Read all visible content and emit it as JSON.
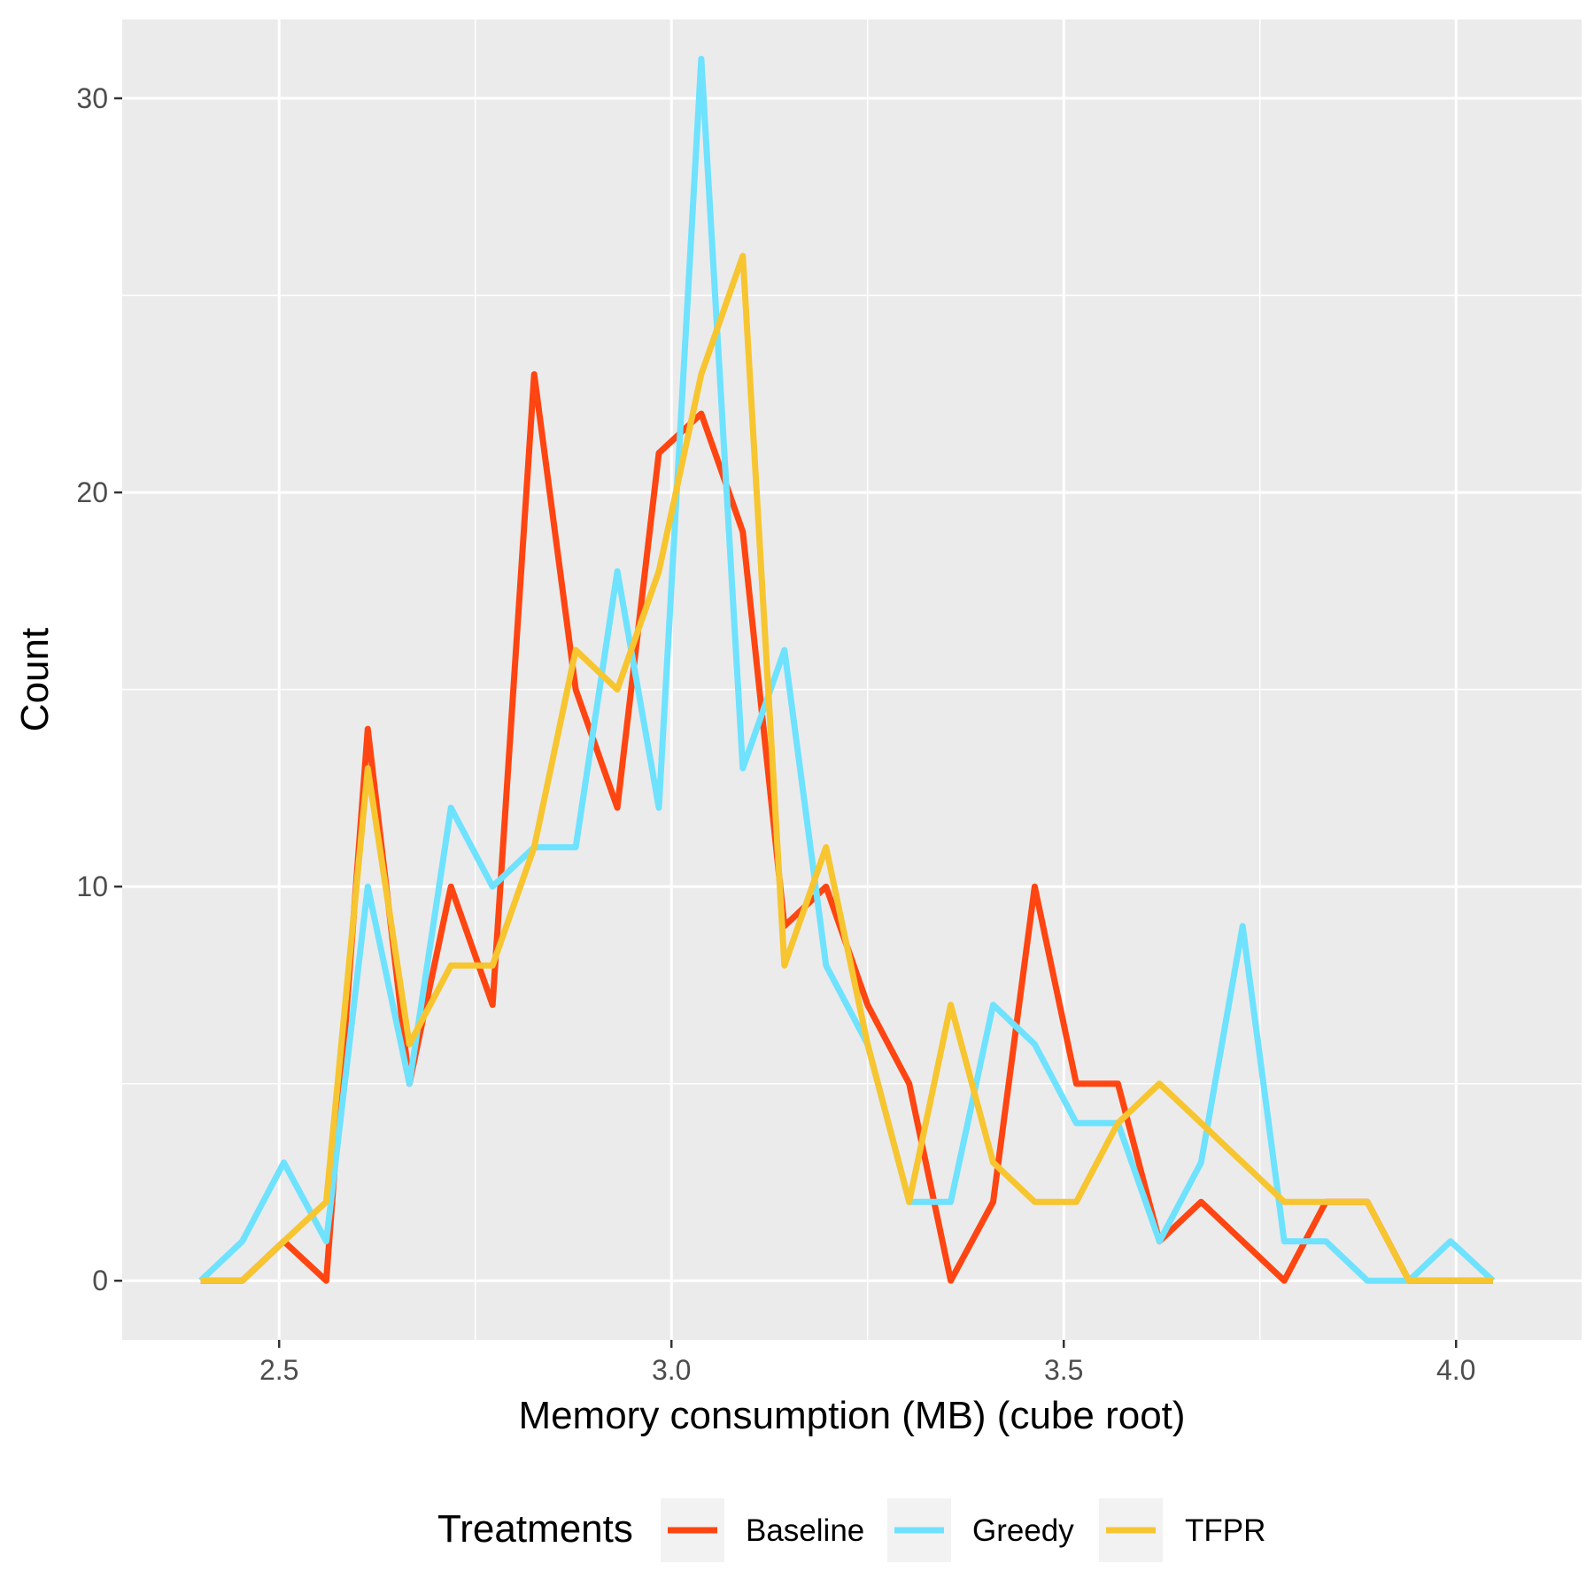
{
  "chart_data": {
    "type": "line",
    "title": "",
    "xlabel": "Memory consumption (MB) (cube root)",
    "ylabel": "Count",
    "xlim": [
      2.3,
      4.16
    ],
    "ylim": [
      -1.5,
      32
    ],
    "x_ticks": [
      2.5,
      3.0,
      3.5,
      4.0
    ],
    "x_tick_labels": [
      "2.5",
      "3.0",
      "3.5",
      "4.0"
    ],
    "y_ticks": [
      0,
      10,
      20,
      30
    ],
    "y_tick_labels": [
      "0",
      "10",
      "20",
      "30"
    ],
    "grid": true,
    "legend": {
      "title": "Treatments",
      "position": "bottom"
    },
    "x": [
      2.4,
      2.453,
      2.506,
      2.56,
      2.613,
      2.666,
      2.719,
      2.772,
      2.825,
      2.878,
      2.931,
      2.984,
      3.038,
      3.091,
      3.144,
      3.197,
      3.25,
      3.303,
      3.356,
      3.41,
      3.463,
      3.516,
      3.569,
      3.622,
      3.675,
      3.728,
      3.781,
      3.834,
      3.887,
      3.94,
      3.993,
      4.047
    ],
    "series": [
      {
        "name": "Baseline",
        "color": "#FF4511",
        "values": [
          0,
          0,
          1,
          0,
          14,
          5,
          10,
          7,
          23,
          15,
          12,
          21,
          22,
          19,
          9,
          10,
          7,
          5,
          0,
          2,
          10,
          5,
          5,
          1,
          2,
          1,
          0,
          2,
          2,
          0,
          0,
          0
        ]
      },
      {
        "name": "Greedy",
        "color": "#6EE2FF",
        "values": [
          0,
          1,
          3,
          1,
          10,
          5,
          12,
          10,
          11,
          11,
          18,
          12,
          31,
          13,
          16,
          8,
          6,
          2,
          2,
          7,
          6,
          4,
          4,
          1,
          3,
          9,
          1,
          1,
          0,
          0,
          1,
          0
        ]
      },
      {
        "name": "TFPR",
        "color": "#F7C530",
        "values": [
          0,
          0,
          1,
          2,
          13,
          6,
          8,
          8,
          11,
          16,
          15,
          18,
          23,
          26,
          8,
          11,
          6,
          2,
          7,
          3,
          2,
          2,
          4,
          5,
          4,
          3,
          2,
          2,
          2,
          0,
          0,
          0
        ]
      }
    ]
  }
}
